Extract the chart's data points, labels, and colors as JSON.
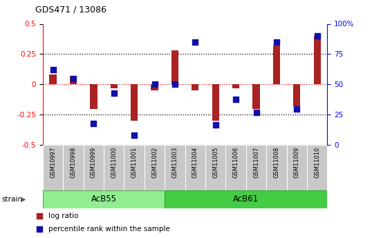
{
  "title": "GDS471 / 13086",
  "samples": [
    "GSM10997",
    "GSM10998",
    "GSM10999",
    "GSM11000",
    "GSM11001",
    "GSM11002",
    "GSM11003",
    "GSM11004",
    "GSM11005",
    "GSM11006",
    "GSM11007",
    "GSM11008",
    "GSM11009",
    "GSM11010"
  ],
  "log_ratio": [
    0.08,
    0.07,
    -0.2,
    -0.03,
    -0.3,
    -0.05,
    0.28,
    -0.05,
    -0.3,
    -0.03,
    -0.2,
    0.32,
    -0.18,
    0.4
  ],
  "percentile": [
    62,
    55,
    18,
    43,
    8,
    50,
    50,
    85,
    17,
    38,
    27,
    85,
    30,
    90
  ],
  "ylim_left": [
    -0.5,
    0.5
  ],
  "ylim_right": [
    0,
    100
  ],
  "bar_color": "#AA2222",
  "dot_color": "#1111AA",
  "background_color": "#ffffff",
  "group1_label": "AcB55",
  "group1_indices": [
    0,
    1,
    2,
    3,
    4,
    5
  ],
  "group1_color": "#90EE90",
  "group2_label": "AcB61",
  "group2_indices": [
    6,
    7,
    8,
    9,
    10,
    11,
    12,
    13
  ],
  "group2_color": "#44CC44",
  "legend_labels": [
    "log ratio",
    "percentile rank within the sample"
  ],
  "legend_colors": [
    "#AA2222",
    "#1111AA"
  ],
  "strain_label": "strain",
  "right_ticks": [
    0,
    25,
    50,
    75,
    100
  ],
  "right_tick_labels": [
    "0",
    "25",
    "50",
    "75",
    "100%"
  ],
  "left_ticks": [
    -0.5,
    -0.25,
    0.0,
    0.25,
    0.5
  ],
  "left_tick_labels": [
    "-0.5",
    "-0.25",
    "0",
    "0.25",
    "0.5"
  ]
}
